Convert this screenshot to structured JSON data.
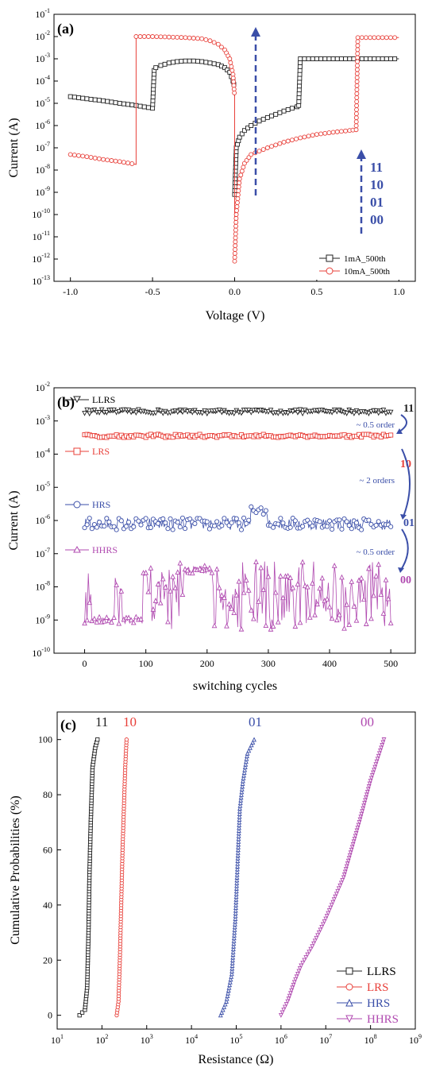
{
  "chart_data": [
    {
      "panel": "(a)",
      "type": "line",
      "xlabel": "Voltage (V)",
      "ylabel": "Current (A)",
      "xlim": [
        -1.1,
        1.1
      ],
      "ylim_log10": [
        -13,
        -1
      ],
      "yscale": "log",
      "x_ticks": [
        "-1.0",
        "-0.5",
        "0.0",
        "0.5",
        "1.0"
      ],
      "y_tick_exponents": [
        "-13",
        "-12",
        "-11",
        "-10",
        "-9",
        "-8",
        "-7",
        "-6",
        "-5",
        "-4",
        "-3",
        "-2",
        "-1"
      ],
      "legend": {
        "position": "bottom-right",
        "entries": [
          "1mA_500th",
          "10mA_500th"
        ]
      },
      "annotations": [
        "11",
        "10",
        "01",
        "00"
      ],
      "series": [
        {
          "name": "1mA_500th",
          "color": "#222222",
          "marker": "square",
          "x": [
            -1.0,
            -0.9,
            -0.8,
            -0.7,
            -0.6,
            -0.5,
            -0.49,
            -0.48,
            -0.45,
            -0.4,
            -0.35,
            -0.3,
            -0.25,
            -0.2,
            -0.15,
            -0.1,
            -0.06,
            -0.03,
            -0.01,
            0.0,
            0.0,
            0.01,
            0.03,
            0.06,
            0.1,
            0.15,
            0.2,
            0.25,
            0.3,
            0.35,
            0.38,
            0.39,
            0.4,
            0.45,
            0.5,
            0.6,
            0.7,
            0.8,
            0.9,
            1.0
          ],
          "y": [
            2e-05,
            1.6e-05,
            1.3e-05,
            1e-05,
            8e-06,
            6e-06,
            0.0003,
            0.0004,
            0.0005,
            0.00065,
            0.00075,
            0.0008,
            0.0008,
            0.00075,
            0.00065,
            0.00055,
            0.0004,
            0.00025,
            0.0001,
            5e-05,
            8e-10,
            1e-07,
            3e-07,
            6e-07,
            1e-06,
            1.6e-06,
            2.3e-06,
            3.2e-06,
            4.5e-06,
            6e-06,
            7e-06,
            8e-06,
            0.001,
            0.001,
            0.001,
            0.001,
            0.001,
            0.001,
            0.001,
            0.001
          ]
        },
        {
          "name": "10mA_500th",
          "color": "#e8403a",
          "marker": "circle",
          "x": [
            -1.0,
            -0.9,
            -0.8,
            -0.7,
            -0.6,
            -0.6,
            -0.55,
            -0.5,
            -0.4,
            -0.3,
            -0.2,
            -0.15,
            -0.1,
            -0.06,
            -0.03,
            -0.01,
            0.0,
            0.0,
            0.01,
            0.03,
            0.06,
            0.1,
            0.2,
            0.3,
            0.4,
            0.5,
            0.6,
            0.7,
            0.74,
            0.75,
            0.8,
            0.9,
            1.0
          ],
          "y": [
            5e-08,
            4e-08,
            3e-08,
            2.4e-08,
            1.8e-08,
            0.01,
            0.01,
            0.01,
            0.0095,
            0.009,
            0.008,
            0.0065,
            0.0045,
            0.0025,
            0.001,
            0.0002,
            2e-05,
            8e-13,
            1e-10,
            4e-09,
            2e-08,
            5e-08,
            1e-07,
            1.8e-07,
            2.8e-07,
            4e-07,
            5e-07,
            6e-07,
            6.5e-07,
            0.009,
            0.009,
            0.009,
            0.009
          ]
        }
      ]
    },
    {
      "panel": "(b)",
      "type": "scatter",
      "xlabel": "switching cycles",
      "ylabel": "Current (A)",
      "xlim": [
        -50,
        540
      ],
      "ylim_log10": [
        -10,
        -2
      ],
      "yscale": "log",
      "x_ticks": [
        "0",
        "100",
        "200",
        "300",
        "400",
        "500"
      ],
      "y_tick_exponents": [
        "-10",
        "-9",
        "-8",
        "-7",
        "-6",
        "-5",
        "-4",
        "-3",
        "-2"
      ],
      "series": [
        {
          "name": "LLRS",
          "color": "#222222",
          "marker": "triangle-down",
          "level_log10": -2.72,
          "spread_log10": 0.06
        },
        {
          "name": "LRS",
          "color": "#e8403a",
          "marker": "square",
          "level_log10": -3.45,
          "spread_log10": 0.05
        },
        {
          "name": "HRS",
          "color": "#3a4ea8",
          "marker": "circle",
          "level_log10": -6.1,
          "spread_log10": 0.18
        },
        {
          "name": "HHRS",
          "color": "#b04ab0",
          "marker": "triangle-up",
          "level_log10": -8.4,
          "spread_log10": 0.6
        }
      ],
      "annotations": {
        "state_labels": [
          "11",
          "10",
          "01",
          "00"
        ],
        "gaps": [
          "~ 0.5 order",
          "~ 2 orders",
          "~ 0.5 order"
        ]
      }
    },
    {
      "panel": "(c)",
      "type": "line",
      "xlabel": "Resistance (Ω)",
      "ylabel": "Cumulative Probabilities (%)",
      "xscale": "log",
      "xlim_log10": [
        1,
        9
      ],
      "ylim": [
        -5,
        110
      ],
      "x_tick_exponents": [
        "1",
        "2",
        "3",
        "4",
        "5",
        "6",
        "7",
        "8",
        "9"
      ],
      "y_ticks": [
        "0",
        "20",
        "40",
        "60",
        "80",
        "100"
      ],
      "legend": {
        "position": "bottom-right",
        "entries": [
          "LLRS",
          "LRS",
          "HRS",
          "HHRS"
        ]
      },
      "top_labels": [
        "11",
        "10",
        "01",
        "00"
      ],
      "series": [
        {
          "name": "LLRS",
          "color": "#222222",
          "marker": "square",
          "points_log10R_pct": [
            [
              1.5,
              0
            ],
            [
              1.62,
              2
            ],
            [
              1.67,
              10
            ],
            [
              1.7,
              30
            ],
            [
              1.72,
              50
            ],
            [
              1.75,
              70
            ],
            [
              1.79,
              90
            ],
            [
              1.85,
              97
            ],
            [
              1.9,
              100
            ]
          ]
        },
        {
          "name": "LRS",
          "color": "#e8403a",
          "marker": "circle",
          "points_log10R_pct": [
            [
              2.33,
              0
            ],
            [
              2.37,
              5
            ],
            [
              2.4,
              20
            ],
            [
              2.43,
              40
            ],
            [
              2.46,
              60
            ],
            [
              2.5,
              80
            ],
            [
              2.52,
              90
            ],
            [
              2.55,
              100
            ]
          ]
        },
        {
          "name": "HRS",
          "color": "#3a4ea8",
          "marker": "triangle-up",
          "points_log10R_pct": [
            [
              4.65,
              0
            ],
            [
              4.78,
              5
            ],
            [
              4.9,
              15
            ],
            [
              4.98,
              35
            ],
            [
              5.03,
              55
            ],
            [
              5.08,
              75
            ],
            [
              5.15,
              85
            ],
            [
              5.25,
              95
            ],
            [
              5.4,
              100
            ]
          ]
        },
        {
          "name": "HHRS",
          "color": "#b04ab0",
          "marker": "triangle-down",
          "points_log10R_pct": [
            [
              6.0,
              0
            ],
            [
              6.15,
              5
            ],
            [
              6.3,
              12
            ],
            [
              6.45,
              18
            ],
            [
              6.7,
              25
            ],
            [
              7.0,
              35
            ],
            [
              7.4,
              50
            ],
            [
              7.75,
              70
            ],
            [
              8.0,
              85
            ],
            [
              8.2,
              95
            ],
            [
              8.3,
              100
            ]
          ]
        }
      ]
    }
  ]
}
